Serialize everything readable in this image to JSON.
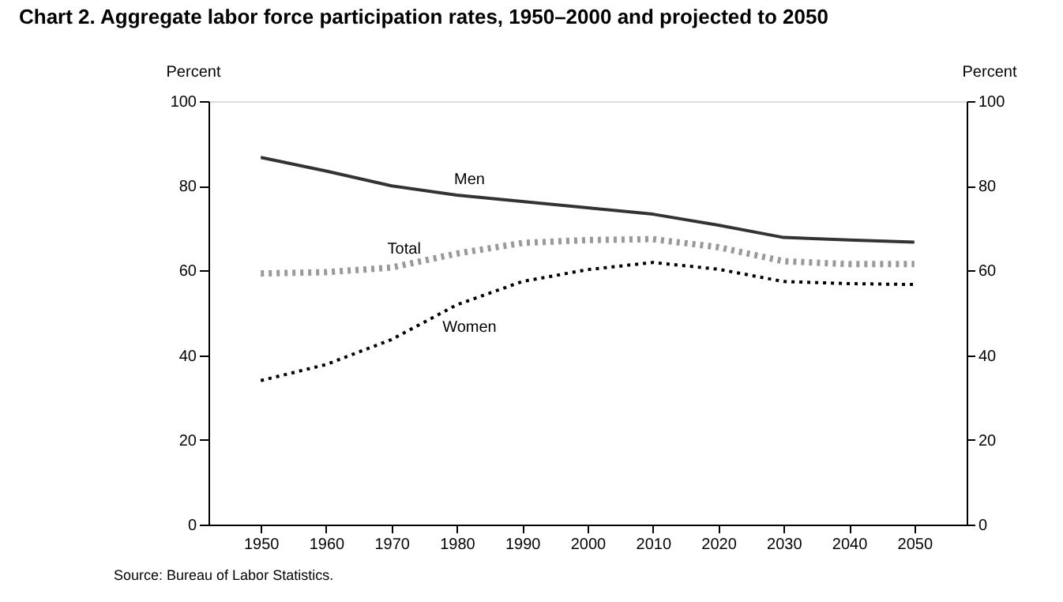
{
  "chart_data": {
    "type": "line",
    "title": "Chart 2.  Aggregate labor force participation rates, 1950–2000 and projected to 2050",
    "x": [
      1950,
      1960,
      1970,
      1980,
      1990,
      2000,
      2010,
      2020,
      2030,
      2040,
      2050
    ],
    "series": [
      {
        "name": "Men",
        "color": "#333333",
        "line_style": "solid",
        "values": [
          86.7,
          83.5,
          80.0,
          77.8,
          76.3,
          74.8,
          73.3,
          70.7,
          67.8,
          67.2,
          66.7
        ]
      },
      {
        "name": "Total",
        "color": "#999999",
        "line_style": "dotted",
        "values": [
          59.3,
          59.6,
          60.7,
          64.0,
          66.5,
          67.2,
          67.4,
          65.5,
          62.2,
          61.5,
          61.5
        ]
      },
      {
        "name": "Women",
        "color": "#000000",
        "line_style": "dotted",
        "values": [
          34.0,
          37.8,
          43.7,
          51.9,
          57.4,
          60.2,
          61.9,
          60.3,
          57.4,
          56.9,
          56.7
        ]
      }
    ],
    "xlim": [
      1942,
      2058
    ],
    "xticks": [
      1950,
      1960,
      1970,
      1980,
      1990,
      2000,
      2010,
      2020,
      2030,
      2040,
      2050
    ],
    "ylim": [
      0,
      100
    ],
    "yticks": [
      0,
      20,
      40,
      60,
      80,
      100
    ],
    "ylabel": "Percent",
    "y2lim": [
      0,
      100
    ],
    "y2ticks": [
      0,
      20,
      40,
      60,
      80,
      100
    ],
    "y2label": "Percent",
    "grid": false,
    "legend": false,
    "marker": "none",
    "annotations": [
      "Source: Bureau of Labor Statistics."
    ]
  }
}
